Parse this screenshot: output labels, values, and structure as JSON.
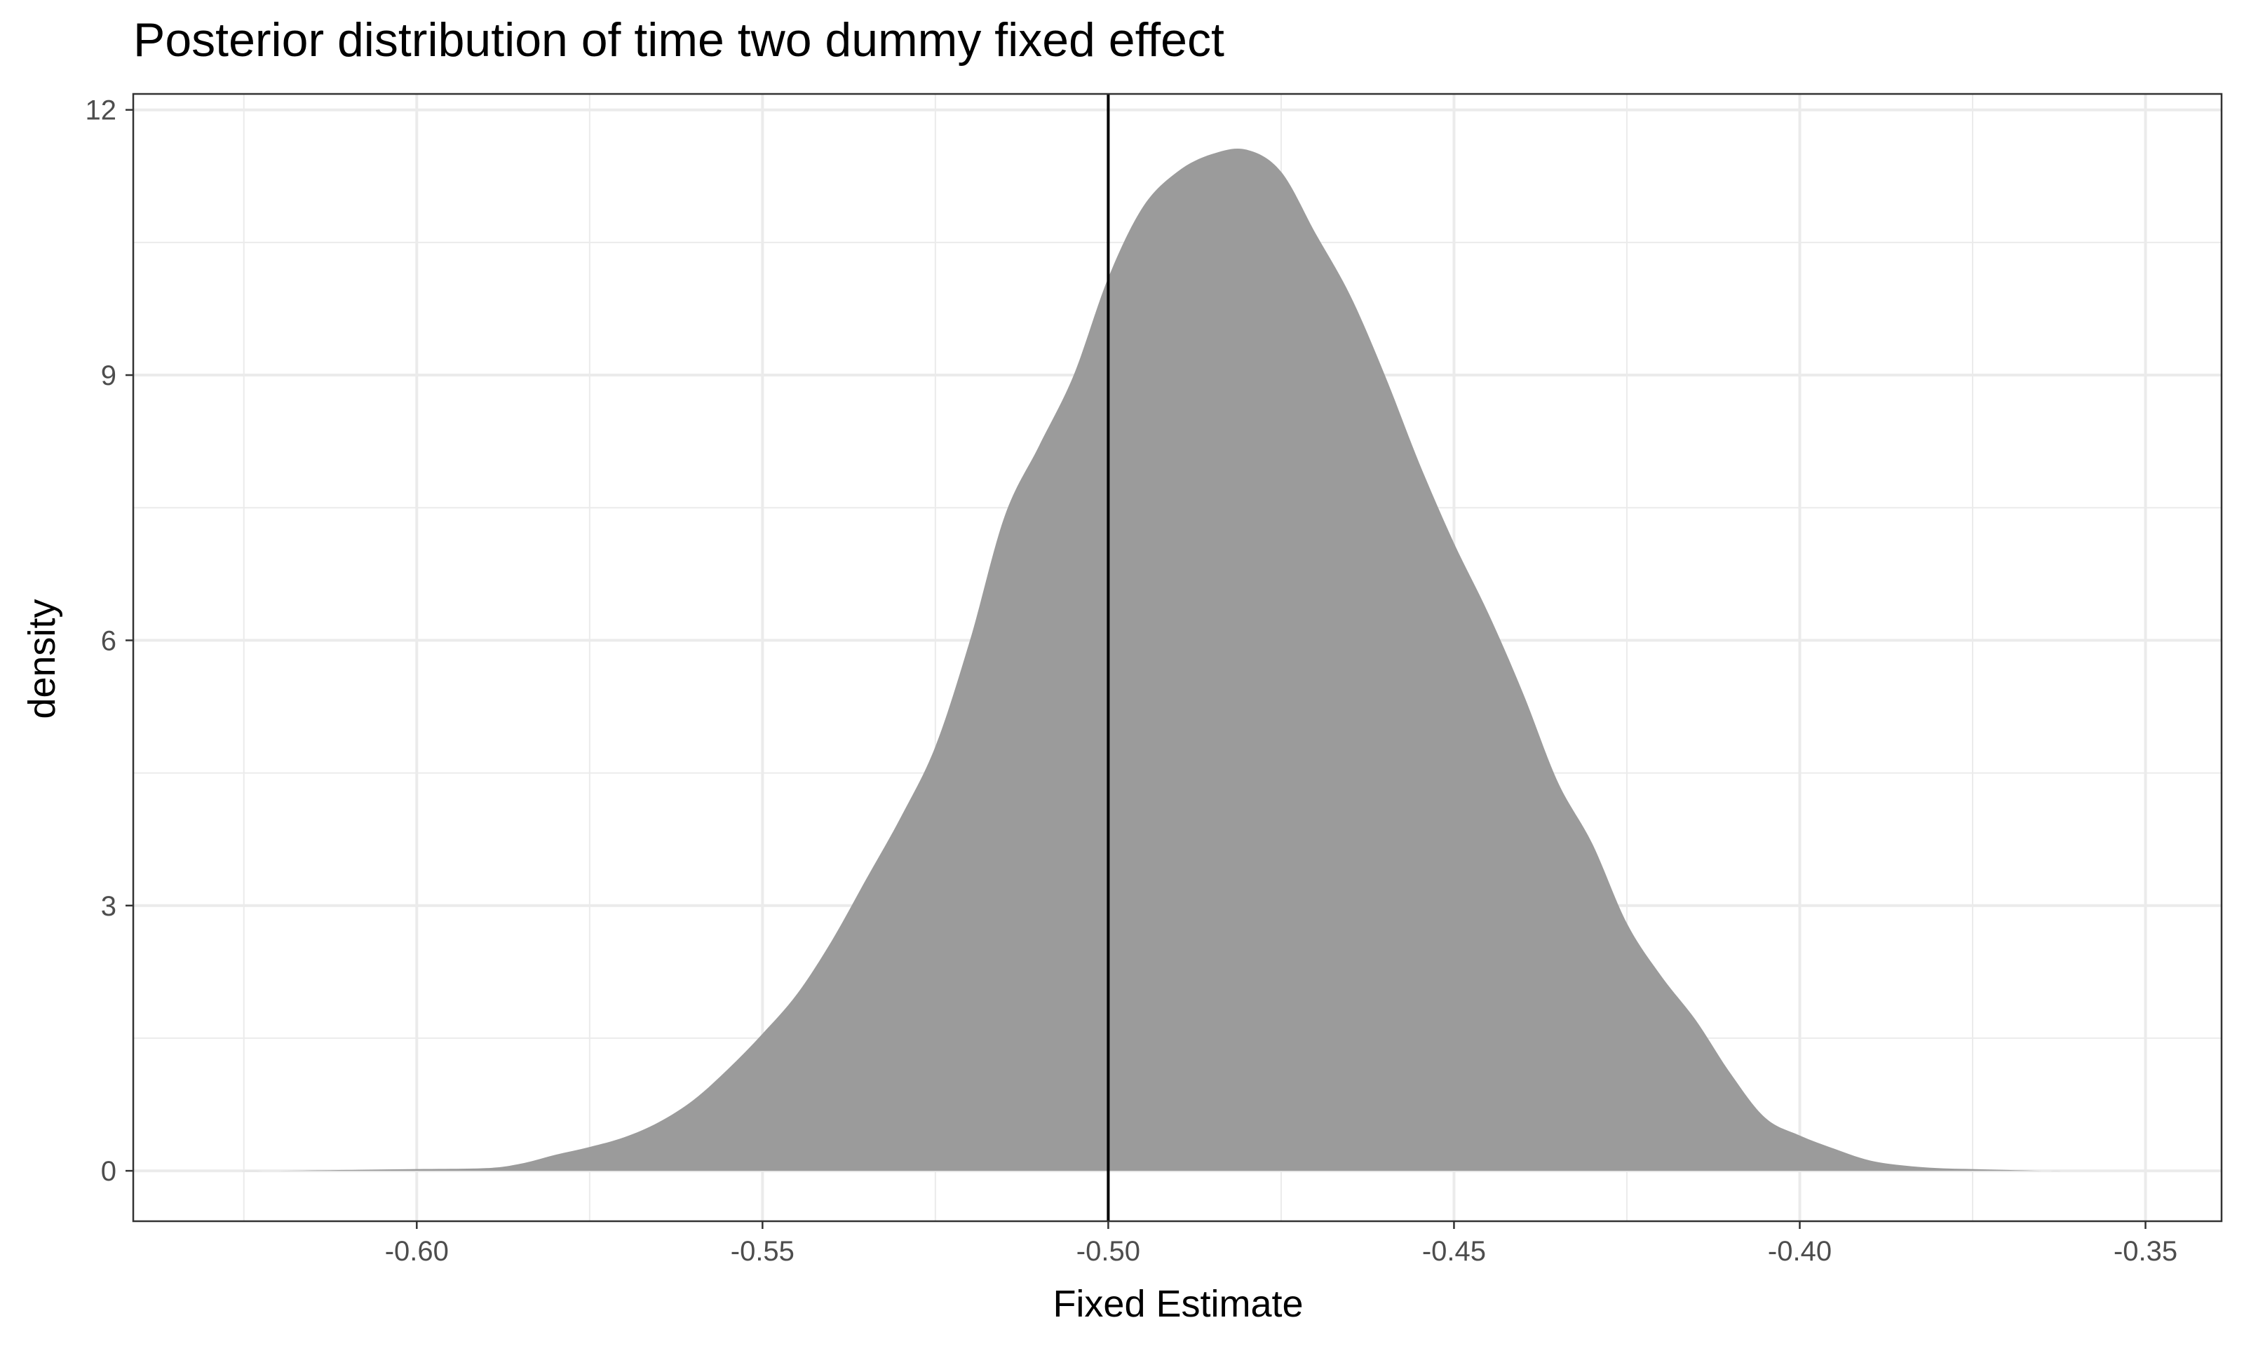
{
  "chart_data": {
    "type": "area",
    "title": "Posterior distribution of time two dummy fixed effect",
    "xlabel": "Fixed Estimate",
    "ylabel": "density",
    "xlim": [
      -0.641,
      -0.339
    ],
    "ylim": [
      -0.57,
      12.18
    ],
    "x_ticks": [
      -0.6,
      -0.55,
      -0.5,
      -0.45,
      -0.4,
      -0.35
    ],
    "x_tick_labels": [
      "-0.60",
      "-0.55",
      "-0.50",
      "-0.45",
      "-0.40",
      "-0.35"
    ],
    "y_ticks": [
      0,
      3,
      6,
      9,
      12
    ],
    "y_tick_labels": [
      "0",
      "3",
      "6",
      "9",
      "12"
    ],
    "grid": true,
    "legend": "none",
    "reference_line": {
      "x": -0.5,
      "color": "#000000"
    },
    "colors": {
      "fill": "#999999",
      "background": "#ffffff",
      "grid": "#ebebeb",
      "panel_border": "#333333"
    },
    "series": [
      {
        "x": [
          -0.628,
          -0.62,
          -0.61,
          -0.6,
          -0.59,
          -0.585,
          -0.58,
          -0.575,
          -0.57,
          -0.565,
          -0.56,
          -0.555,
          -0.55,
          -0.545,
          -0.54,
          -0.535,
          -0.53,
          -0.525,
          -0.52,
          -0.515,
          -0.51,
          -0.505,
          -0.5,
          -0.495,
          -0.49,
          -0.485,
          -0.48,
          -0.475,
          -0.47,
          -0.465,
          -0.46,
          -0.455,
          -0.45,
          -0.445,
          -0.44,
          -0.435,
          -0.43,
          -0.425,
          -0.42,
          -0.415,
          -0.41,
          -0.405,
          -0.4,
          -0.395,
          -0.39,
          -0.385,
          -0.38,
          -0.375,
          -0.37,
          -0.365,
          -0.36,
          -0.353
        ],
        "y": [
          0.0,
          0.0,
          0.01,
          0.02,
          0.03,
          0.08,
          0.18,
          0.27,
          0.38,
          0.55,
          0.8,
          1.15,
          1.55,
          2.0,
          2.6,
          3.3,
          4.0,
          4.8,
          6.0,
          7.4,
          8.2,
          9.0,
          10.1,
          10.9,
          11.3,
          11.5,
          11.55,
          11.3,
          10.6,
          9.9,
          9.0,
          8.0,
          7.1,
          6.3,
          5.4,
          4.4,
          3.7,
          2.8,
          2.2,
          1.7,
          1.1,
          0.6,
          0.4,
          0.25,
          0.12,
          0.06,
          0.03,
          0.02,
          0.01,
          0.0,
          0.0,
          0.0
        ]
      }
    ]
  }
}
